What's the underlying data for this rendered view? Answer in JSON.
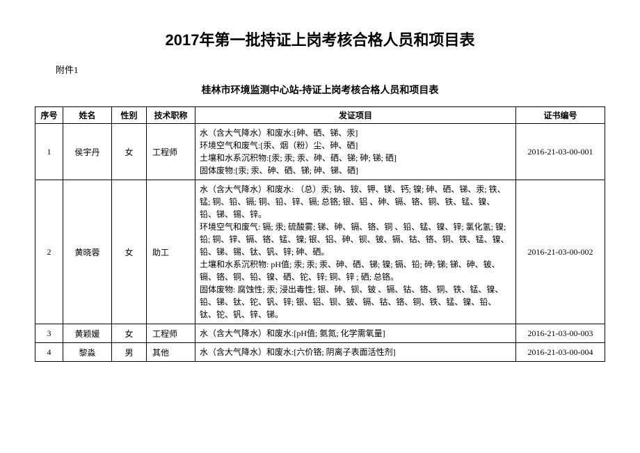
{
  "main_title": "2017年第一批持证上岗考核合格人员和项目表",
  "attachment_label": "附件1",
  "sub_title": "桂林市环境监测中心站-持证上岗考核合格人员和项目表",
  "columns": {
    "seq": "序号",
    "name": "姓名",
    "gender": "性别",
    "title": "技术职称",
    "project": "发证项目",
    "cert": "证书编号"
  },
  "rows": [
    {
      "seq": "1",
      "name": "侯宇丹",
      "gender": "女",
      "title": "工程师",
      "project_lines": [
        "水（含大气降水）和废水:[砷、硒、锑、汞]",
        "环境空气和废气:[汞、烟（粉）尘、砷、硒]",
        "土壤和水系沉积物:[汞; 汞; 汞、砷、硒、锑; 砷; 锑; 硒]",
        "固体废物:[汞; 汞、砷、硒、锑; 砷、锑、硒]"
      ],
      "cert": "2016-21-03-00-001"
    },
    {
      "seq": "2",
      "name": "黄晓蓉",
      "gender": "女",
      "title": "助工",
      "project_lines": [
        "水（含大气降水）和废水: （总）汞; 钠、铵、钾、镁、钙; 镍; 砷、硒、锑、汞; 铁、锰; 铜、铅、镉; 铜、铅、锌、镉; 总铬; 银、铝 、砷、镉、铬、铜、铁、锰、镍、铅、锑、锡、锌。",
        "环境空气和废气: 镉; 汞; 硫酸雾; 锑、砷、镉、铬、铜 、铅、锰、镍、锌; 氯化氢; 镍; 铅; 铜、锌、镉、铬、锰、镍; 银、铝、砷、钡、铍、镉、钴、铬、铜、铁、锰、镍、铅、锑、锡、钛、钒、锌; 砷、硒。",
        "土壤和水系沉积物: pH值; 汞; 汞; 汞、砷、硒、锑; 镍; 镉、铅; 砷; 锑; 锑、砷、铍、镉、铬、铜、铅、镍、硒、铊、锌; 铜、锌 ; 硒; 总铬。",
        "固体废物: 腐蚀性; 汞; 浸出毒性; 银、砷、钡、铍 、镉、钴、铬、铜、铁、锰、镍、铅、锑、钛、铊、钒、锌; 银、铝、钡、铍、镉、钴、铬、铜、铁、锰、镍、铅、钛、铊、钒、锌、锑。"
      ],
      "cert": "2016-21-03-00-002"
    },
    {
      "seq": "3",
      "name": "黄颖媛",
      "gender": "女",
      "title": "工程师",
      "project_lines": [
        "水（含大气降水）和废水:[pH值; 氨氮; 化学需氧量]"
      ],
      "cert": "2016-21-03-00-003"
    },
    {
      "seq": "4",
      "name": "黎淼",
      "gender": "男",
      "title": "其他",
      "project_lines": [
        "水（含大气降水）和废水:[六价铬; 阴离子表面活性剂]"
      ],
      "cert": "2016-21-03-00-004"
    }
  ]
}
